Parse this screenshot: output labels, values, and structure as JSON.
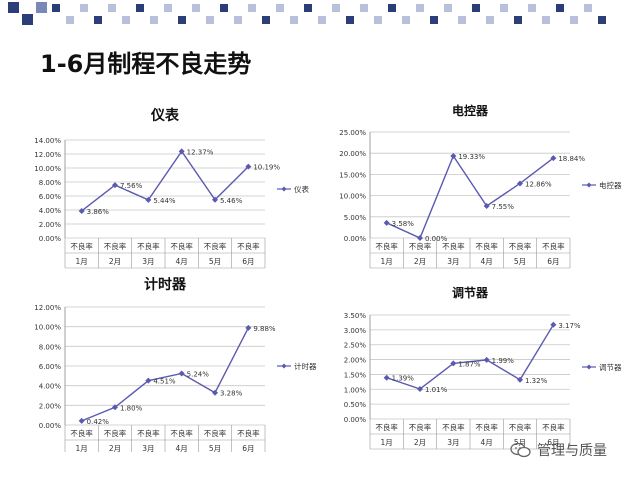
{
  "slide": {
    "title": "1-6月制程不良走势",
    "watermark": "管理与质量",
    "watermark_icon": "wechat-icon"
  },
  "colors": {
    "decoration": "#2c3e7a",
    "line": "#5a5ab0",
    "grid": "#c8c8c8",
    "text": "#333333"
  },
  "chart_data": [
    {
      "type": "line",
      "title": "仪表",
      "categories": [
        "1月",
        "2月",
        "3月",
        "4月",
        "5月",
        "6月"
      ],
      "category_label": "不良率",
      "series": [
        {
          "name": "仪表",
          "values": [
            3.86,
            7.56,
            5.44,
            12.37,
            5.46,
            10.19
          ]
        }
      ],
      "data_labels": [
        "3.86%",
        "7.56%",
        "5.44%",
        "12.37%",
        "5.46%",
        "10.19%"
      ],
      "y_ticks": [
        "0.00%",
        "2.00%",
        "4.00%",
        "6.00%",
        "8.00%",
        "10.00%",
        "12.00%",
        "14.00%"
      ],
      "ylim": [
        0,
        14
      ],
      "grid": true,
      "legend": "right"
    },
    {
      "type": "line",
      "title": "电控器",
      "categories": [
        "1月",
        "2月",
        "3月",
        "4月",
        "5月",
        "6月"
      ],
      "category_label": "不良率",
      "series": [
        {
          "name": "电控器",
          "values": [
            3.58,
            0.0,
            19.33,
            7.55,
            12.86,
            18.84
          ]
        }
      ],
      "data_labels": [
        "3.58%",
        "0.00%",
        "19.33%",
        "7.55%",
        "12.86%",
        "18.84%"
      ],
      "y_ticks": [
        "0.00%",
        "5.00%",
        "10.00%",
        "15.00%",
        "20.00%",
        "25.00%"
      ],
      "ylim": [
        0,
        25
      ],
      "grid": true,
      "legend": "right"
    },
    {
      "type": "line",
      "title": "计时器",
      "categories": [
        "1月",
        "2月",
        "3月",
        "4月",
        "5月",
        "6月"
      ],
      "category_label": "不良率",
      "series": [
        {
          "name": "计时器",
          "values": [
            0.42,
            1.8,
            4.51,
            5.24,
            3.28,
            9.88
          ]
        }
      ],
      "data_labels": [
        "0.42%",
        "1.80%",
        "4.51%",
        "5.24%",
        "3.28%",
        "9.88%"
      ],
      "y_ticks": [
        "0.00%",
        "2.00%",
        "4.00%",
        "6.00%",
        "8.00%",
        "10.00%",
        "12.00%"
      ],
      "ylim": [
        0,
        12
      ],
      "grid": true,
      "legend": "right"
    },
    {
      "type": "line",
      "title": "调节器",
      "categories": [
        "1月",
        "2月",
        "3月",
        "4月",
        "5月",
        "6月"
      ],
      "category_label": "不良率",
      "series": [
        {
          "name": "调节器",
          "values": [
            1.39,
            1.01,
            1.87,
            1.99,
            1.32,
            3.17
          ]
        }
      ],
      "data_labels": [
        "1.39%",
        "1.01%",
        "1.87%",
        "1.99%",
        "1.32%",
        "3.17%"
      ],
      "y_ticks": [
        "0.00%",
        "0.50%",
        "1.00%",
        "1.50%",
        "2.00%",
        "2.50%",
        "3.00%",
        "3.50%"
      ],
      "ylim": [
        0,
        3.5
      ],
      "grid": true,
      "legend": "right"
    }
  ]
}
